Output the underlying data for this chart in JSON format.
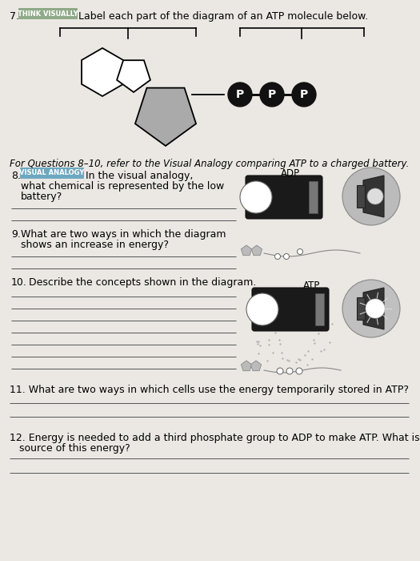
{
  "bg_color": "#ebe8e3",
  "think_visually_label": "THINK VISUALLY",
  "think_visually_bg": "#8faa88",
  "q7_text": "Label each part of the diagram of an ATP molecule below.",
  "for_questions_text": "For Questions 8–10, refer to the Visual Analogy comparing ATP to a charged battery.",
  "visual_analogy_label": "VISUAL ANALOGY",
  "visual_analogy_bg": "#6ea8c0",
  "q8_text": "In the visual analogy,\nwhat chemical is represented by the low\nbattery?",
  "q9_text": "What are two ways in which the diagram\nshows an increase in energy?",
  "q10_text": "Describe the concepts shown in the diagram.",
  "q11_text": "11. What are two ways in which cells use the energy temporarily stored in ATP?",
  "q12_text": "12. Energy is needed to add a third phosphate group to ADP to make ATP. What is a cell’s\n    source of this energy?",
  "adp_label": "ADP",
  "atp_label": "ATP",
  "pentagon_fill": "#aaaaaa",
  "line_color": "#222222",
  "p_circle_color": "#111111",
  "answer_line_color": "#555555"
}
